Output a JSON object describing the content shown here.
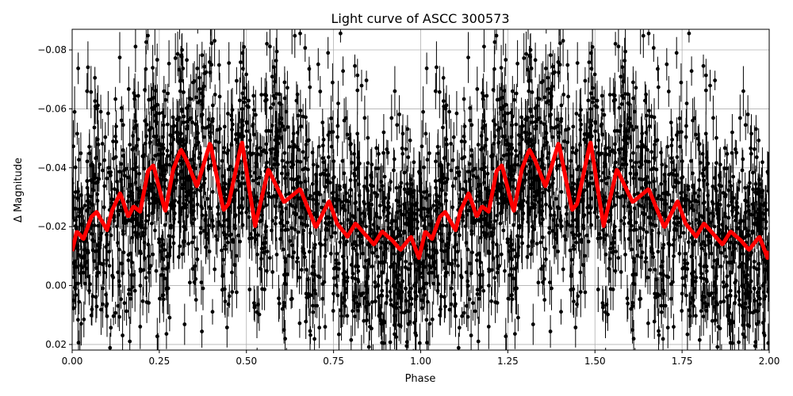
{
  "chart_data": {
    "type": "scatter",
    "title": "Light curve of ASCC 300573",
    "xlabel": "Phase",
    "ylabel": "Δ Magnitude",
    "xlim": [
      0,
      2
    ],
    "ylim": [
      0.0219,
      -0.087
    ],
    "y_inverted": true,
    "grid": true,
    "xticks": [
      "0.00",
      "0.25",
      "0.50",
      "0.75",
      "1.00",
      "1.25",
      "1.50",
      "1.75",
      "2.00"
    ],
    "xtick_values": [
      0,
      0.25,
      0.5,
      0.75,
      1,
      1.25,
      1.5,
      1.75,
      2
    ],
    "yticks": [
      "−0.08",
      "−0.06",
      "−0.04",
      "−0.02",
      "0.00",
      "0.02"
    ],
    "ytick_values": [
      -0.08,
      -0.06,
      -0.04,
      -0.02,
      0,
      0.02
    ],
    "series": [
      {
        "name": "observations",
        "kind": "errorbar-points",
        "color": "#000000",
        "approx_points_per_cycle": 1800,
        "approx_scatter_sigma": 0.02,
        "approx_errorbar": 0.006
      },
      {
        "name": "binned model",
        "kind": "line",
        "color": "#ff0000",
        "repeat_period": 1,
        "phase": [
          0.0,
          0.013,
          0.024,
          0.032,
          0.055,
          0.07,
          0.1,
          0.115,
          0.138,
          0.161,
          0.176,
          0.195,
          0.218,
          0.233,
          0.267,
          0.29,
          0.312,
          0.328,
          0.358,
          0.396,
          0.434,
          0.449,
          0.487,
          0.525,
          0.563,
          0.608,
          0.654,
          0.699,
          0.737,
          0.76,
          0.79,
          0.813,
          0.866,
          0.889,
          0.919,
          0.942,
          0.972,
          0.995
        ],
        "mag": [
          -0.0117,
          -0.0184,
          -0.017,
          -0.0157,
          -0.0233,
          -0.025,
          -0.0188,
          -0.0256,
          -0.0314,
          -0.0233,
          -0.0269,
          -0.0251,
          -0.039,
          -0.0408,
          -0.0251,
          -0.0395,
          -0.0462,
          -0.0426,
          -0.0336,
          -0.0485,
          -0.0256,
          -0.0278,
          -0.0489,
          -0.0202,
          -0.0395,
          -0.0283,
          -0.0328,
          -0.0197,
          -0.0287,
          -0.0211,
          -0.0166,
          -0.0211,
          -0.0139,
          -0.0184,
          -0.0153,
          -0.0121,
          -0.0166,
          -0.0094
        ]
      }
    ]
  }
}
